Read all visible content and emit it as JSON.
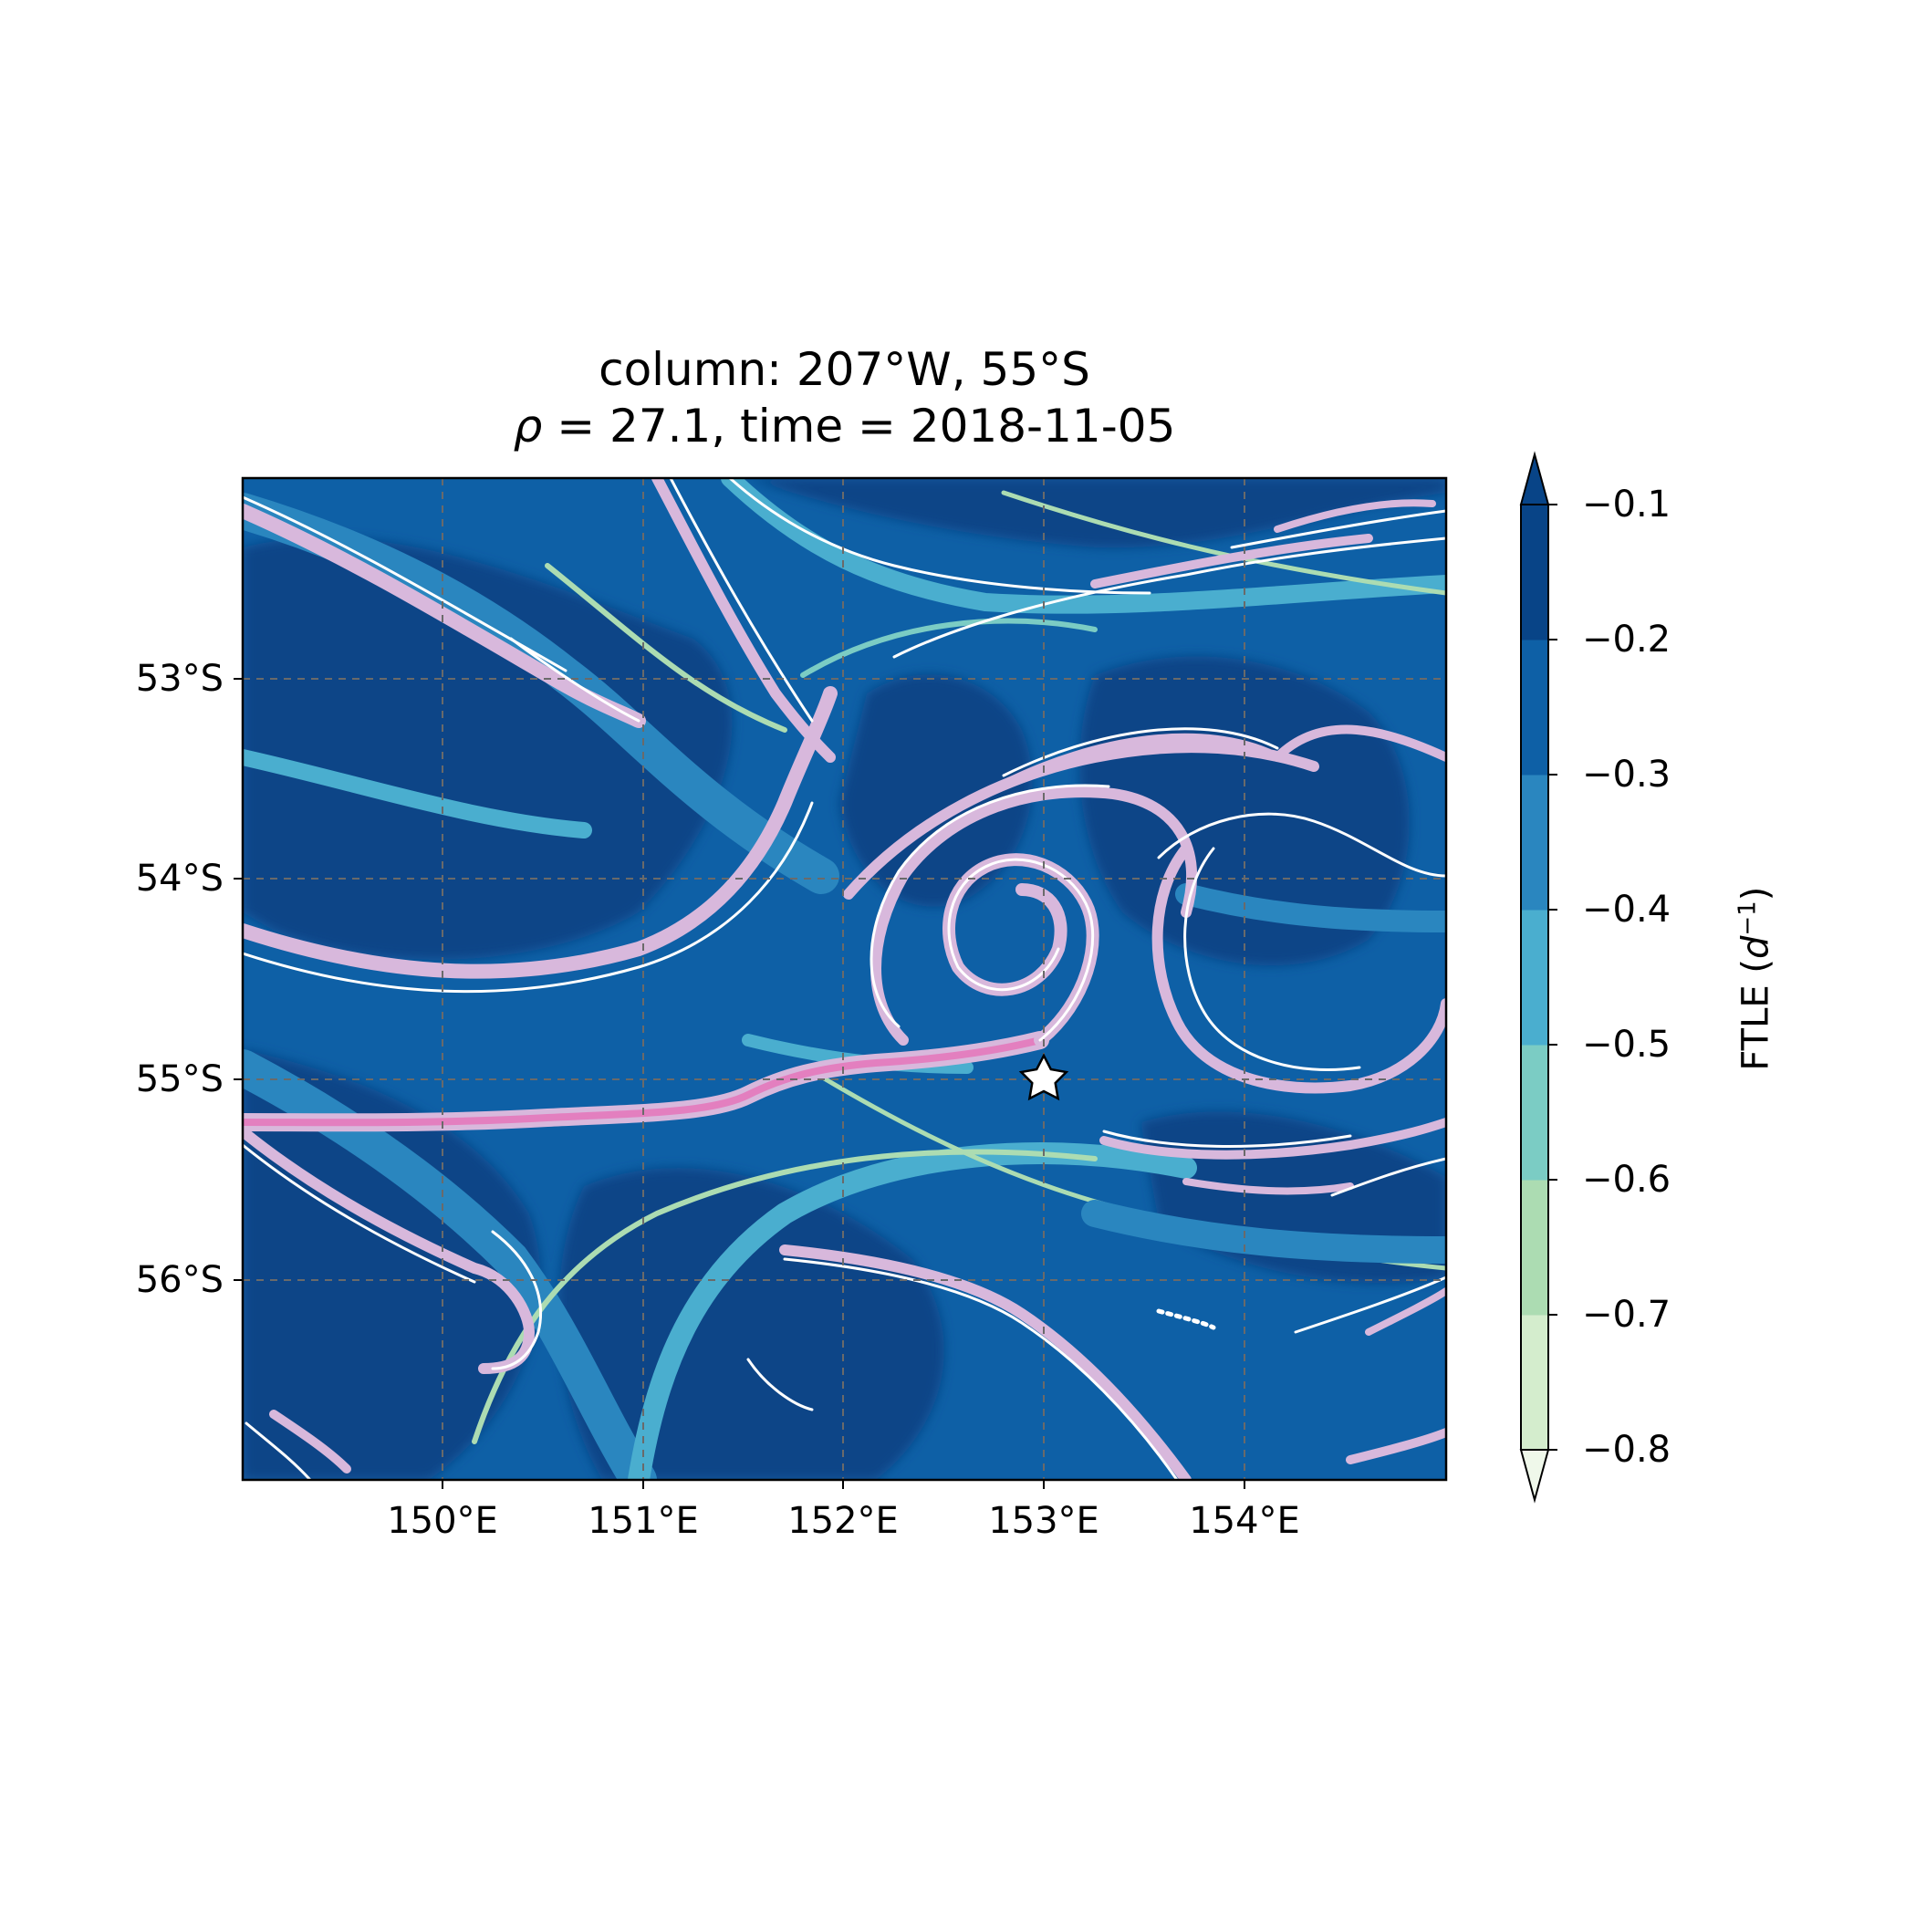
{
  "title": {
    "line1": "column: 207°W, 55°S",
    "line2_prefix": "ρ",
    "line2_rest": " = 27.1, time = 2018-11-05"
  },
  "map": {
    "lon_range": [
      149.0,
      155.0
    ],
    "lat_range": [
      -57.0,
      -52.0
    ],
    "x_ticks": [
      {
        "value": 150,
        "label": "150°E"
      },
      {
        "value": 151,
        "label": "151°E"
      },
      {
        "value": 152,
        "label": "152°E"
      },
      {
        "value": 153,
        "label": "153°E"
      },
      {
        "value": 154,
        "label": "154°E"
      }
    ],
    "y_ticks": [
      {
        "value": -53,
        "label": "53°S"
      },
      {
        "value": -54,
        "label": "54°S"
      },
      {
        "value": -55,
        "label": "55°S"
      },
      {
        "value": -56,
        "label": "56°S"
      }
    ],
    "gridlines": "dashed",
    "marker": {
      "shape": "star",
      "lon": 153.0,
      "lat": -55.0,
      "fill": "#ffffff",
      "edge": "#000000"
    },
    "field": "FTLE filled contours with white/pink ridge contours"
  },
  "colorbar": {
    "label_prefix": "FTLE (",
    "label_symbol": "d",
    "label_exp": "−1",
    "label_suffix": ")",
    "extend": "both",
    "ticks": [
      "−0.1",
      "−0.2",
      "−0.3",
      "−0.4",
      "−0.5",
      "−0.6",
      "−0.7",
      "−0.8"
    ],
    "levels": [
      -0.8,
      -0.7,
      -0.6,
      -0.5,
      -0.4,
      -0.3,
      -0.2,
      -0.1
    ],
    "colors": [
      "#eff8ea",
      "#d4edcd",
      "#acdcb2",
      "#7bccc4",
      "#4aaecf",
      "#2a86bf",
      "#0e60a6",
      "#084487"
    ]
  },
  "colors": {
    "ocean_deep": "#084487",
    "ocean_mid": "#0e60a6",
    "ocean_light": "#2a86bf",
    "ridge_cyan": "#4aaecf",
    "ridge_green": "#acdcb2",
    "ridge_white": "#ffffff",
    "ridge_lilac": "#d8b8dc",
    "ridge_pink": "#e37fbf"
  }
}
